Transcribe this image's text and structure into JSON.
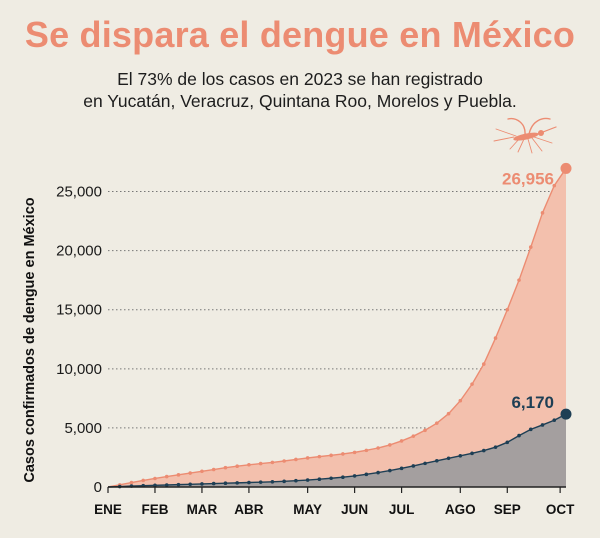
{
  "header": {
    "title": "Se dispara el dengue en México",
    "subtitle_line1": "El 73% de los casos en 2023 se han registrado",
    "subtitle_line2": "en Yucatán, Veracruz, Quintana Roo, Morelos y Puebla."
  },
  "colors": {
    "background": "#efece3",
    "total_line": "#ec8c72",
    "total_fill": "#f3c0ad",
    "subset_line": "#1e3f55",
    "subset_fill": "#a49f9f",
    "grid": "#777777"
  },
  "chart_data": {
    "type": "area",
    "ylabel": "Casos confirmados de dengue en México",
    "ylim": [
      0,
      27500
    ],
    "yticks": [
      0,
      5000,
      10000,
      15000,
      20000,
      25000
    ],
    "ytick_labels": [
      "0",
      "5,000",
      "10,000",
      "15,000",
      "20,000",
      "25,000"
    ],
    "xlim": [
      1,
      40
    ],
    "x_unit": "week",
    "month_ticks": [
      {
        "label": "ENE",
        "x": 1
      },
      {
        "label": "FEB",
        "x": 5
      },
      {
        "label": "MAR",
        "x": 9
      },
      {
        "label": "ABR",
        "x": 13
      },
      {
        "label": "MAY",
        "x": 18
      },
      {
        "label": "JUN",
        "x": 22
      },
      {
        "label": "JUL",
        "x": 26
      },
      {
        "label": "AGO",
        "x": 31
      },
      {
        "label": "SEP",
        "x": 35
      },
      {
        "label": "OCT",
        "x": 39.5
      }
    ],
    "grid": "horizontal-dotted",
    "annotations": [
      {
        "text": "26,956",
        "series": 0
      },
      {
        "text": "6,170",
        "series": 1
      }
    ],
    "series": [
      {
        "x": [
          1,
          2,
          3,
          4,
          5,
          6,
          7,
          8,
          9,
          10,
          11,
          12,
          13,
          14,
          15,
          16,
          17,
          18,
          19,
          20,
          21,
          22,
          23,
          24,
          25,
          26,
          27,
          28,
          29,
          30,
          31,
          32,
          33,
          34,
          35,
          36,
          37,
          38,
          39,
          40
        ],
        "values": [
          0,
          180,
          380,
          560,
          720,
          880,
          1030,
          1180,
          1330,
          1480,
          1630,
          1760,
          1880,
          1980,
          2080,
          2200,
          2330,
          2460,
          2570,
          2680,
          2800,
          2930,
          3100,
          3300,
          3560,
          3900,
          4300,
          4800,
          5400,
          6200,
          7300,
          8700,
          10400,
          12600,
          15000,
          17500,
          20300,
          23200,
          25500,
          26956
        ]
      },
      {
        "x": [
          1,
          2,
          3,
          4,
          5,
          6,
          7,
          8,
          9,
          10,
          11,
          12,
          13,
          14,
          15,
          16,
          17,
          18,
          19,
          20,
          21,
          22,
          23,
          24,
          25,
          26,
          27,
          28,
          29,
          30,
          31,
          32,
          33,
          34,
          35,
          36,
          37,
          38,
          39,
          40
        ],
        "values": [
          0,
          40,
          80,
          110,
          140,
          170,
          200,
          230,
          260,
          290,
          320,
          350,
          380,
          410,
          440,
          480,
          530,
          590,
          660,
          740,
          830,
          940,
          1070,
          1220,
          1390,
          1580,
          1780,
          2000,
          2220,
          2430,
          2640,
          2850,
          3080,
          3370,
          3780,
          4350,
          4880,
          5250,
          5650,
          6170
        ]
      }
    ]
  }
}
